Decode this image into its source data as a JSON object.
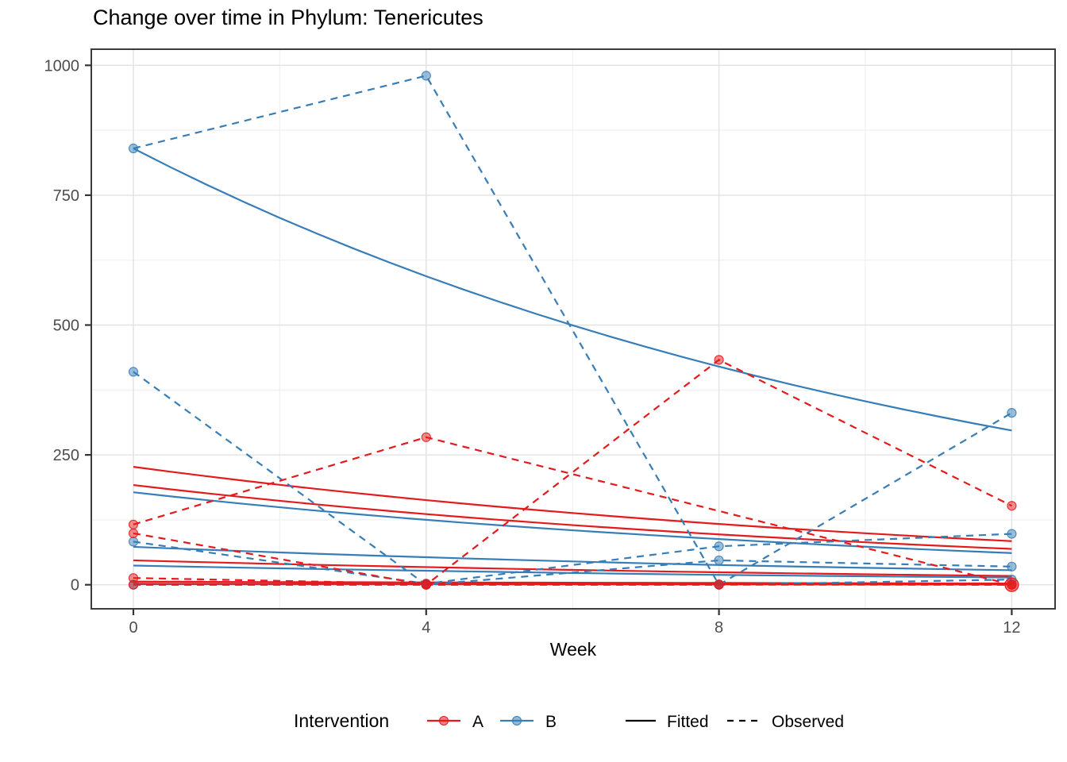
{
  "title": "Change over time in Phylum: Tenericutes",
  "x_axis": {
    "label": "Week",
    "ticks": [
      0,
      4,
      8,
      12
    ]
  },
  "y_axis": {
    "ticks": [
      0,
      250,
      500,
      750,
      1000
    ]
  },
  "legend": {
    "title": "Intervention",
    "groups": [
      {
        "label": "A"
      },
      {
        "label": "B"
      }
    ],
    "linetypes": [
      {
        "label": "Fitted"
      },
      {
        "label": "Observed"
      }
    ]
  },
  "colors": {
    "A": "#e41a1c",
    "B": "#377eb8",
    "linetype_key": "#000000",
    "grid_major": "#e2e2e2",
    "grid_minor": "#efefef",
    "panel_border": "#3c3c3c",
    "tick_mark": "#333333",
    "tick_text": "#4d4d4d",
    "title_text": "#000000"
  },
  "chart_data": {
    "type": "line",
    "title": "Change over time in Phylum: Tenericutes",
    "xlabel": "Week",
    "ylabel": "",
    "x": [
      0,
      4,
      8,
      12
    ],
    "xlim": [
      -0.6,
      12.6
    ],
    "ylim": [
      -49,
      1029
    ],
    "grid": true,
    "legend_position": "bottom",
    "series": [
      {
        "intervention": "B",
        "linetype": "Fitted",
        "values": [
          840,
          594,
          420,
          297
        ]
      },
      {
        "intervention": "B",
        "linetype": "Fitted",
        "values": [
          178,
          125,
          88,
          61
        ]
      },
      {
        "intervention": "B",
        "linetype": "Fitted",
        "values": [
          73,
          53,
          38,
          28
        ]
      },
      {
        "intervention": "B",
        "linetype": "Fitted",
        "values": [
          37,
          27,
          19,
          14
        ]
      },
      {
        "intervention": "B",
        "linetype": "Fitted",
        "values": [
          1,
          0.8,
          0.6,
          0.5
        ]
      },
      {
        "intervention": "A",
        "linetype": "Fitted",
        "values": [
          227,
          163,
          117,
          84
        ]
      },
      {
        "intervention": "A",
        "linetype": "Fitted",
        "values": [
          192,
          136,
          97,
          69
        ]
      },
      {
        "intervention": "A",
        "linetype": "Fitted",
        "values": [
          47,
          34,
          24,
          17
        ]
      },
      {
        "intervention": "A",
        "linetype": "Fitted",
        "values": [
          6,
          4.5,
          3.5,
          2.5
        ]
      },
      {
        "intervention": "A",
        "linetype": "Fitted",
        "values": [
          2,
          1.5,
          1,
          0.8
        ]
      },
      {
        "intervention": "B",
        "linetype": "Observed",
        "values": [
          840,
          980,
          0,
          331
        ]
      },
      {
        "intervention": "B",
        "linetype": "Observed",
        "values": [
          410,
          0,
          47,
          35
        ]
      },
      {
        "intervention": "B",
        "linetype": "Observed",
        "values": [
          83,
          2,
          74,
          98
        ]
      },
      {
        "intervention": "B",
        "linetype": "Observed",
        "values": [
          0,
          0,
          0,
          10
        ]
      },
      {
        "intervention": "A",
        "linetype": "Observed",
        "values": [
          99,
          0,
          433,
          152
        ]
      },
      {
        "intervention": "A",
        "linetype": "Observed",
        "values": [
          116,
          284,
          null,
          0
        ]
      },
      {
        "intervention": "A",
        "linetype": "Observed",
        "values": [
          13,
          2,
          1,
          0
        ]
      },
      {
        "intervention": "A",
        "linetype": "Observed",
        "values": [
          0,
          0,
          0,
          0
        ]
      }
    ],
    "emphasis_point": {
      "x": 12,
      "y": 0,
      "intervention": "A",
      "radius": 8.5
    }
  }
}
